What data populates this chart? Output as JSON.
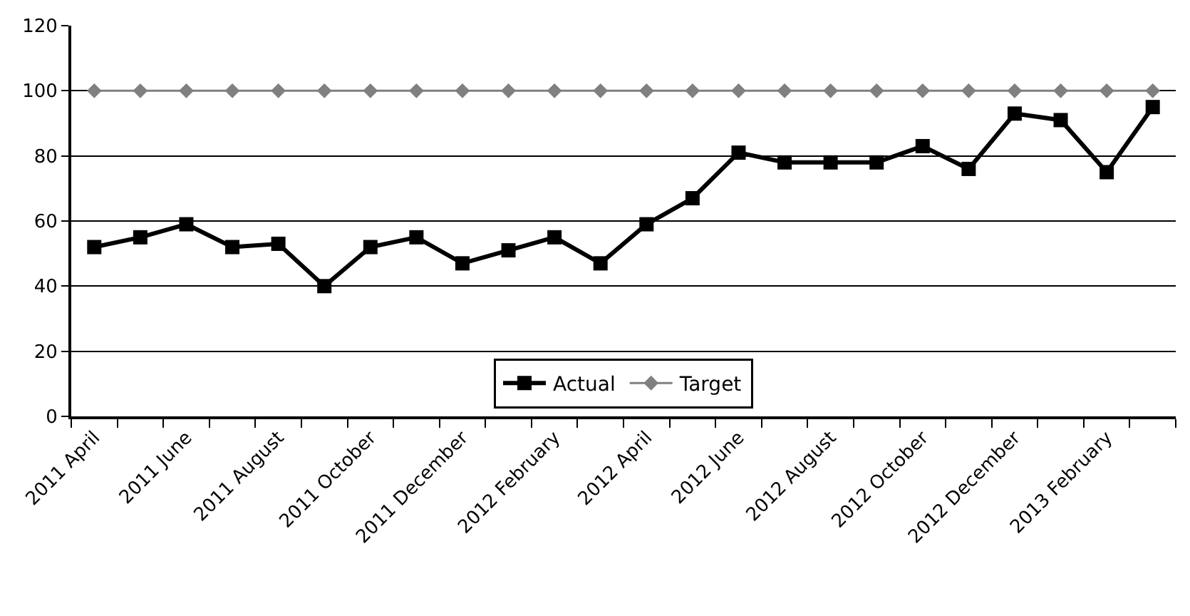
{
  "chart_data": {
    "type": "line",
    "categories": [
      "2011 April",
      null,
      "2011 June",
      null,
      "2011 August",
      null,
      "2011 October",
      null,
      "2011 December",
      null,
      "2012 February",
      null,
      "2012 April",
      null,
      "2012 June",
      null,
      "2012 August",
      null,
      "2012 October",
      null,
      "2012 December",
      null,
      "2013 February",
      null
    ],
    "series": [
      {
        "name": "Actual",
        "color": "#000000",
        "marker": "square",
        "values": [
          52,
          55,
          59,
          52,
          53,
          40,
          52,
          55,
          47,
          51,
          55,
          47,
          59,
          67,
          81,
          78,
          78,
          78,
          83,
          76,
          93,
          91,
          75,
          95
        ]
      },
      {
        "name": "Target",
        "color": "#808080",
        "marker": "diamond",
        "values": [
          100,
          100,
          100,
          100,
          100,
          100,
          100,
          100,
          100,
          100,
          100,
          100,
          100,
          100,
          100,
          100,
          100,
          100,
          100,
          100,
          100,
          100,
          100,
          100
        ]
      }
    ],
    "ylim": [
      0,
      120
    ],
    "yticks": [
      0,
      20,
      40,
      60,
      80,
      100,
      120
    ],
    "grid": "y",
    "legend": "bottom"
  }
}
